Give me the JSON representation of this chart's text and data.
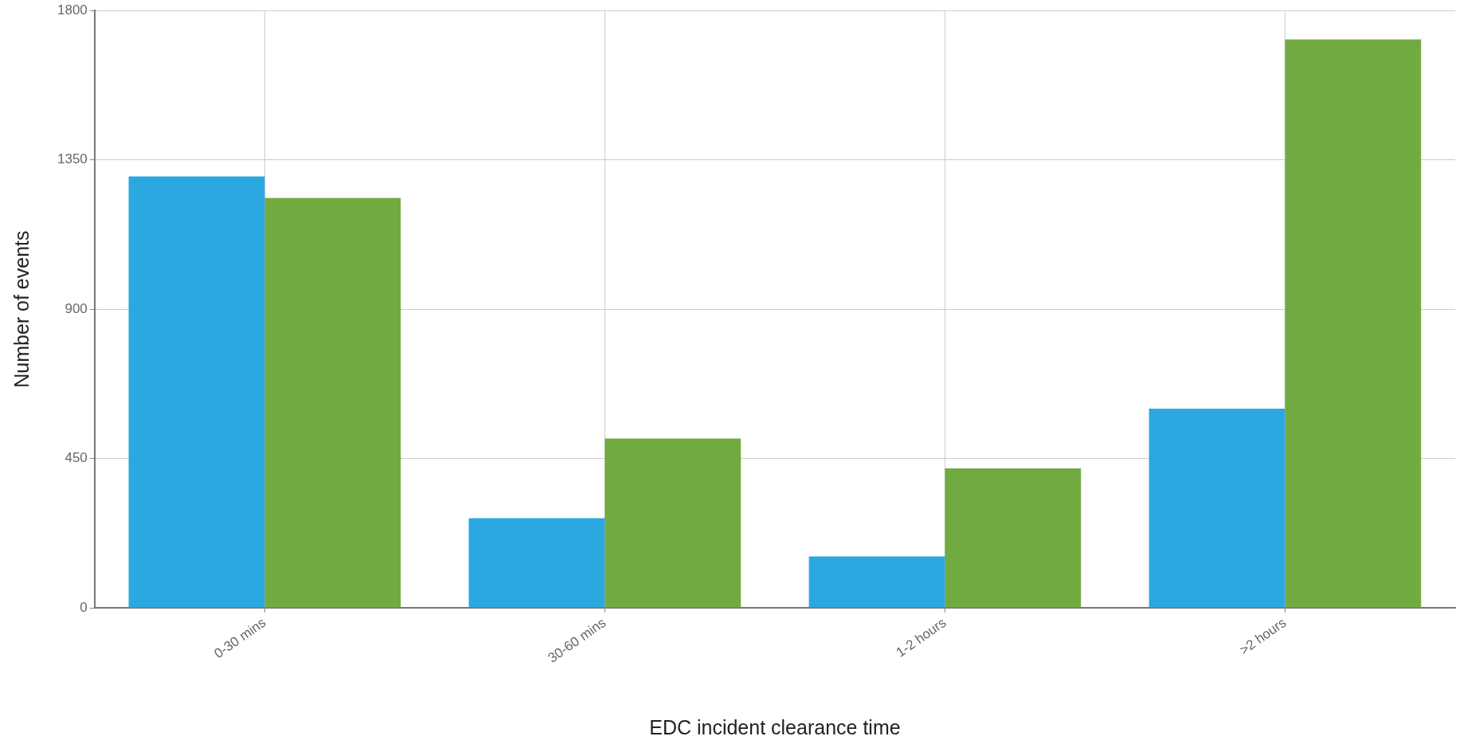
{
  "chart_data": {
    "type": "bar",
    "xlabel": "EDC incident clearance time",
    "ylabel": "Number of events",
    "categories": [
      "0-30 mins",
      "30-60 mins",
      "1-2 hours",
      ">2 hours"
    ],
    "series": [
      {
        "color": "#2ca8e0",
        "values": [
          1300,
          270,
          155,
          600
        ]
      },
      {
        "color": "#72aa42",
        "values": [
          1235,
          510,
          420,
          1713
        ]
      }
    ],
    "ylim": [
      0,
      1800
    ],
    "yticks": [
      0,
      450,
      900,
      1350,
      1800
    ],
    "grid": true,
    "legend": false
  }
}
